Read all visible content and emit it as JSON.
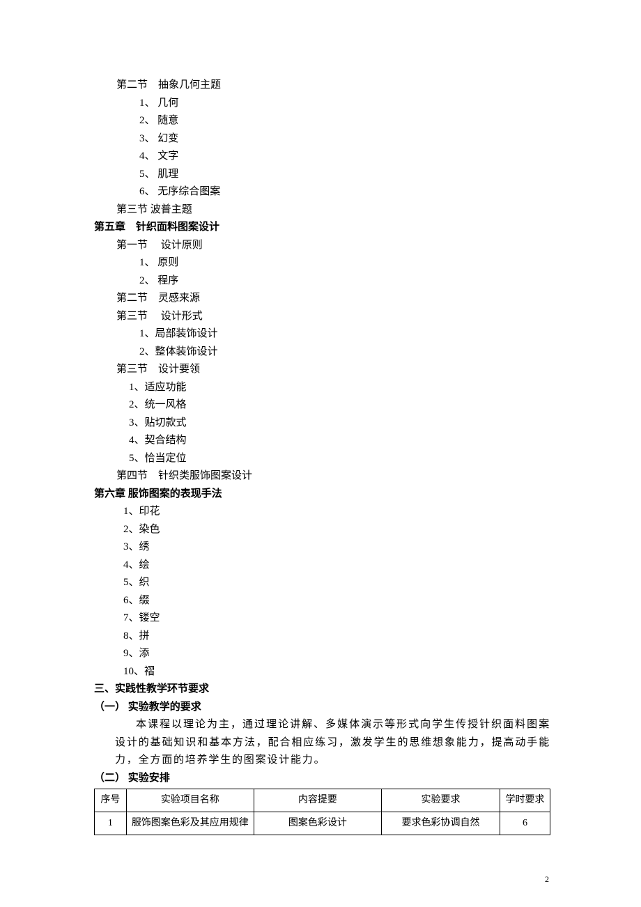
{
  "outline": {
    "sec2": {
      "title": "第二节　抽象几何主题",
      "items": [
        "1、 几何",
        "2、 随意",
        "3、 幻变",
        "4、 文字",
        "5、 肌理",
        "6、 无序综合图案"
      ]
    },
    "sec3": {
      "title": "第三节  波普主题"
    },
    "ch5": {
      "title": "第五章　针织面料图案设计",
      "s1": {
        "title": "第一节　 设计原则",
        "items": [
          "1、 原则",
          "2、 程序"
        ]
      },
      "s2": {
        "title": "第二节　灵感来源"
      },
      "s3": {
        "title": "第三节　 设计形式",
        "items": [
          "1、局部装饰设计",
          "2、整体装饰设计"
        ]
      },
      "s3b": {
        "title": "第三节　设计要领",
        "items": [
          "1、适应功能",
          "2、统一风格",
          "3、贴切款式",
          "4、契合结构",
          "5、恰当定位"
        ]
      },
      "s4": {
        "title": "第四节　针织类服饰图案设计"
      }
    },
    "ch6": {
      "title": "第六章  服饰图案的表现手法",
      "items": [
        "1、印花",
        "2、染色",
        "3、绣",
        "4、绘",
        "5、织",
        "6、缀",
        "7、镂空",
        "8、拼",
        "9、添",
        "10、褶"
      ]
    },
    "part3": {
      "title": "三、实践性教学环节要求",
      "sub1": {
        "title": "（一）  实验教学的要求"
      },
      "para": "本课程以理论为主，通过理论讲解、多媒体演示等形式向学生传授针织面料图案设计的基础知识和基本方法，配合相应练习，激发学生的思维想象能力，提高动手能力，全方面的培养学生的图案设计能力。",
      "sub2": {
        "title": "（二）  实验安排"
      }
    }
  },
  "table": {
    "columns": [
      "序号",
      "实验项目名称",
      "内容提要",
      "实验要求",
      "学时要求"
    ],
    "rows": [
      [
        "1",
        "服饰图案色彩及其应用规律",
        "图案色彩设计",
        "要求色彩协调自然",
        "6"
      ]
    ]
  },
  "page_number": "2"
}
